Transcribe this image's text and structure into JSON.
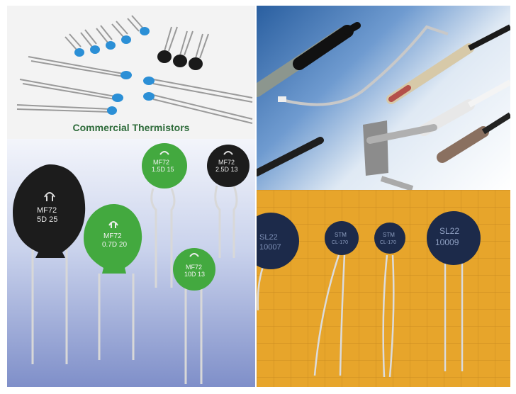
{
  "panel1": {
    "caption": "Commercial Thermistors"
  },
  "panel3": {
    "parts": [
      {
        "l1": "MF72",
        "l2": "5D 25"
      },
      {
        "l1": "MF72",
        "l2": "0.7D 20"
      },
      {
        "l1": "MF72",
        "l2": "1.5D 15"
      },
      {
        "l1": "MF72",
        "l2": "2.5D 13"
      },
      {
        "l1": "MF72",
        "l2": "10D 13"
      }
    ]
  },
  "panel4": {
    "parts": [
      {
        "l1": "SL22",
        "l2": "10007"
      },
      {
        "l1": "STM",
        "l2": "CL-170"
      },
      {
        "l1": "STM",
        "l2": "CL-170"
      },
      {
        "l1": "SL22",
        "l2": "10009"
      }
    ]
  }
}
